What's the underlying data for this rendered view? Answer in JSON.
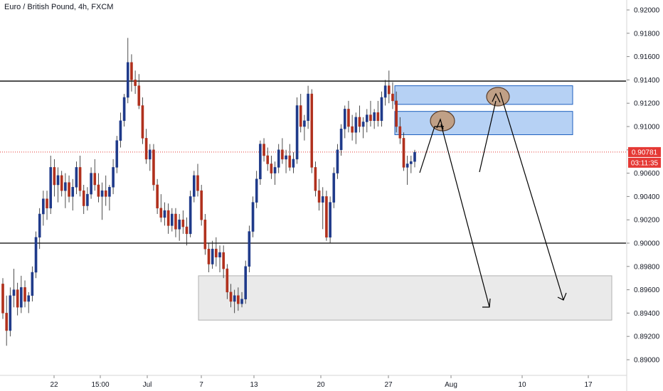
{
  "header": {
    "title": "Euro / British Pound, 4h, FXCM"
  },
  "colors": {
    "up": "#1f3a8a",
    "down": "#b0301d",
    "wick": "#222222",
    "price_line": "#e53935",
    "zone_blue": "#4a90e2",
    "zone_grey": "#b0b0b0",
    "circle_fill": "#c19a7a"
  },
  "chart_data": {
    "type": "candlestick",
    "title": "Euro / British Pound, 4h, FXCM",
    "ylim": [
      0.888,
      0.921
    ],
    "yticks": [
      "0.92000",
      "0.91800",
      "0.91600",
      "0.91400",
      "0.91200",
      "0.91000",
      "0.90800",
      "0.90600",
      "0.90400",
      "0.90200",
      "0.90000",
      "0.89800",
      "0.89600",
      "0.89400",
      "0.89200",
      "0.89000"
    ],
    "xticks": [
      "22",
      "15:00",
      "Jul",
      "7",
      "13",
      "20",
      "27",
      "Aug",
      "10",
      "17"
    ],
    "current_price": "0.90781",
    "countdown": "03:11:35",
    "horizontal_levels": [
      0.9139,
      0.9
    ],
    "zones": [
      {
        "name": "supply-zone-upper",
        "top": 0.9135,
        "bottom": 0.9119
      },
      {
        "name": "supply-zone-lower",
        "top": 0.9113,
        "bottom": 0.9093
      },
      {
        "name": "demand-zone",
        "top": 0.8972,
        "bottom": 0.8934
      }
    ],
    "candles": [
      [
        0.8965,
        0.897,
        0.8935,
        0.894
      ],
      [
        0.894,
        0.8955,
        0.8912,
        0.8925
      ],
      [
        0.8925,
        0.8962,
        0.892,
        0.8955
      ],
      [
        0.8955,
        0.8978,
        0.8945,
        0.896
      ],
      [
        0.896,
        0.8966,
        0.8938,
        0.8945
      ],
      [
        0.8945,
        0.8972,
        0.894,
        0.8962
      ],
      [
        0.8962,
        0.8968,
        0.8945,
        0.895
      ],
      [
        0.895,
        0.8958,
        0.894,
        0.8955
      ],
      [
        0.8955,
        0.898,
        0.895,
        0.8975
      ],
      [
        0.8975,
        0.901,
        0.897,
        0.9005
      ],
      [
        0.9005,
        0.903,
        0.8995,
        0.9025
      ],
      [
        0.9025,
        0.9045,
        0.9015,
        0.9038
      ],
      [
        0.9038,
        0.9045,
        0.902,
        0.903
      ],
      [
        0.903,
        0.9075,
        0.9025,
        0.9065
      ],
      [
        0.9065,
        0.9072,
        0.904,
        0.905
      ],
      [
        0.905,
        0.9065,
        0.9035,
        0.9058
      ],
      [
        0.9058,
        0.9062,
        0.904,
        0.9045
      ],
      [
        0.9045,
        0.906,
        0.903,
        0.9052
      ],
      [
        0.9052,
        0.9058,
        0.9035,
        0.904
      ],
      [
        0.904,
        0.9055,
        0.9028,
        0.9048
      ],
      [
        0.9048,
        0.907,
        0.9042,
        0.9065
      ],
      [
        0.9065,
        0.9075,
        0.904,
        0.9045
      ],
      [
        0.9045,
        0.905,
        0.9025,
        0.9032
      ],
      [
        0.9032,
        0.9048,
        0.9028,
        0.9042
      ],
      [
        0.9042,
        0.9065,
        0.9038,
        0.906
      ],
      [
        0.906,
        0.9072,
        0.9045,
        0.905
      ],
      [
        0.905,
        0.906,
        0.9035,
        0.904
      ],
      [
        0.904,
        0.9052,
        0.902,
        0.9045
      ],
      [
        0.9045,
        0.9058,
        0.9032,
        0.904
      ],
      [
        0.904,
        0.905,
        0.9028,
        0.9048
      ],
      [
        0.9048,
        0.9072,
        0.9042,
        0.9065
      ],
      [
        0.9065,
        0.9092,
        0.906,
        0.9088
      ],
      [
        0.9088,
        0.9112,
        0.9082,
        0.9105
      ],
      [
        0.9105,
        0.9128,
        0.91,
        0.9125
      ],
      [
        0.9125,
        0.9176,
        0.912,
        0.9155
      ],
      [
        0.9155,
        0.9162,
        0.913,
        0.914
      ],
      [
        0.914,
        0.9148,
        0.9128,
        0.9135
      ],
      [
        0.9135,
        0.9145,
        0.9115,
        0.9118
      ],
      [
        0.9118,
        0.9125,
        0.9085,
        0.909
      ],
      [
        0.909,
        0.9098,
        0.9068,
        0.9072
      ],
      [
        0.9072,
        0.9085,
        0.9062,
        0.908
      ],
      [
        0.908,
        0.9085,
        0.9045,
        0.905
      ],
      [
        0.905,
        0.9055,
        0.9025,
        0.903
      ],
      [
        0.903,
        0.9042,
        0.9018,
        0.9022
      ],
      [
        0.9022,
        0.9035,
        0.9015,
        0.9028
      ],
      [
        0.9028,
        0.9034,
        0.9008,
        0.9015
      ],
      [
        0.9015,
        0.903,
        0.901,
        0.9025
      ],
      [
        0.9025,
        0.903,
        0.9005,
        0.9012
      ],
      [
        0.9012,
        0.9025,
        0.9002,
        0.902
      ],
      [
        0.902,
        0.9028,
        0.9008,
        0.9014
      ],
      [
        0.9014,
        0.9022,
        0.8998,
        0.9008
      ],
      [
        0.9008,
        0.9045,
        0.9005,
        0.904
      ],
      [
        0.904,
        0.9062,
        0.9035,
        0.9058
      ],
      [
        0.9058,
        0.9068,
        0.904,
        0.9045
      ],
      [
        0.9045,
        0.905,
        0.9015,
        0.902
      ],
      [
        0.902,
        0.9025,
        0.899,
        0.8995
      ],
      [
        0.8995,
        0.9,
        0.8975,
        0.8982
      ],
      [
        0.8982,
        0.9002,
        0.8978,
        0.8995
      ],
      [
        0.8995,
        0.9005,
        0.898,
        0.8988
      ],
      [
        0.8988,
        0.8998,
        0.8975,
        0.8992
      ],
      [
        0.8992,
        0.8998,
        0.897,
        0.8978
      ],
      [
        0.8978,
        0.8982,
        0.8952,
        0.8958
      ],
      [
        0.8958,
        0.8965,
        0.8945,
        0.895
      ],
      [
        0.895,
        0.896,
        0.894,
        0.8955
      ],
      [
        0.8955,
        0.8962,
        0.8942,
        0.8948
      ],
      [
        0.8948,
        0.8958,
        0.8945,
        0.8952
      ],
      [
        0.8952,
        0.8985,
        0.8948,
        0.898
      ],
      [
        0.898,
        0.9015,
        0.8975,
        0.901
      ],
      [
        0.901,
        0.904,
        0.9005,
        0.9035
      ],
      [
        0.9035,
        0.9062,
        0.903,
        0.9055
      ],
      [
        0.9055,
        0.9088,
        0.905,
        0.9085
      ],
      [
        0.9085,
        0.909,
        0.907,
        0.9075
      ],
      [
        0.9075,
        0.9082,
        0.9062,
        0.9068
      ],
      [
        0.9068,
        0.9075,
        0.9055,
        0.906
      ],
      [
        0.906,
        0.907,
        0.905,
        0.9065
      ],
      [
        0.9065,
        0.9085,
        0.906,
        0.908
      ],
      [
        0.908,
        0.909,
        0.9068,
        0.9072
      ],
      [
        0.9072,
        0.908,
        0.906,
        0.9075
      ],
      [
        0.9075,
        0.9085,
        0.9062,
        0.9065
      ],
      [
        0.9065,
        0.9078,
        0.906,
        0.9072
      ],
      [
        0.9072,
        0.9125,
        0.9068,
        0.9118
      ],
      [
        0.9118,
        0.9128,
        0.9095,
        0.91
      ],
      [
        0.91,
        0.911,
        0.9088,
        0.9105
      ],
      [
        0.9105,
        0.9135,
        0.9098,
        0.9128
      ],
      [
        0.9128,
        0.9132,
        0.906,
        0.9065
      ],
      [
        0.9065,
        0.907,
        0.904,
        0.9045
      ],
      [
        0.9045,
        0.9055,
        0.9028,
        0.9035
      ],
      [
        0.9035,
        0.9048,
        0.9012,
        0.904
      ],
      [
        0.904,
        0.9045,
        0.9002,
        0.9005
      ],
      [
        0.9005,
        0.904,
        0.9,
        0.9035
      ],
      [
        0.9035,
        0.9065,
        0.903,
        0.906
      ],
      [
        0.906,
        0.9085,
        0.9055,
        0.908
      ],
      [
        0.908,
        0.9102,
        0.9075,
        0.9098
      ],
      [
        0.9098,
        0.9118,
        0.909,
        0.9115
      ],
      [
        0.9115,
        0.9122,
        0.9095,
        0.91
      ],
      [
        0.91,
        0.911,
        0.9088,
        0.9095
      ],
      [
        0.9095,
        0.9112,
        0.9085,
        0.9108
      ],
      [
        0.9108,
        0.9118,
        0.9095,
        0.91
      ],
      [
        0.91,
        0.9108,
        0.909,
        0.9104
      ],
      [
        0.9104,
        0.9115,
        0.9095,
        0.911
      ],
      [
        0.911,
        0.9122,
        0.91,
        0.9105
      ],
      [
        0.9105,
        0.9115,
        0.9098,
        0.9112
      ],
      [
        0.9112,
        0.9122,
        0.91,
        0.9105
      ],
      [
        0.9105,
        0.913,
        0.91,
        0.9125
      ],
      [
        0.9125,
        0.914,
        0.9118,
        0.9135
      ],
      [
        0.9135,
        0.9148,
        0.912,
        0.9128
      ],
      [
        0.9128,
        0.9138,
        0.9115,
        0.9122
      ],
      [
        0.9122,
        0.913,
        0.9095,
        0.91
      ],
      [
        0.91,
        0.9108,
        0.9085,
        0.909
      ],
      [
        0.909,
        0.9095,
        0.9062,
        0.9065
      ],
      [
        0.9065,
        0.9075,
        0.905,
        0.9068
      ],
      [
        0.9068,
        0.9075,
        0.906,
        0.907
      ],
      [
        0.907,
        0.908,
        0.9065,
        0.9078
      ]
    ]
  }
}
